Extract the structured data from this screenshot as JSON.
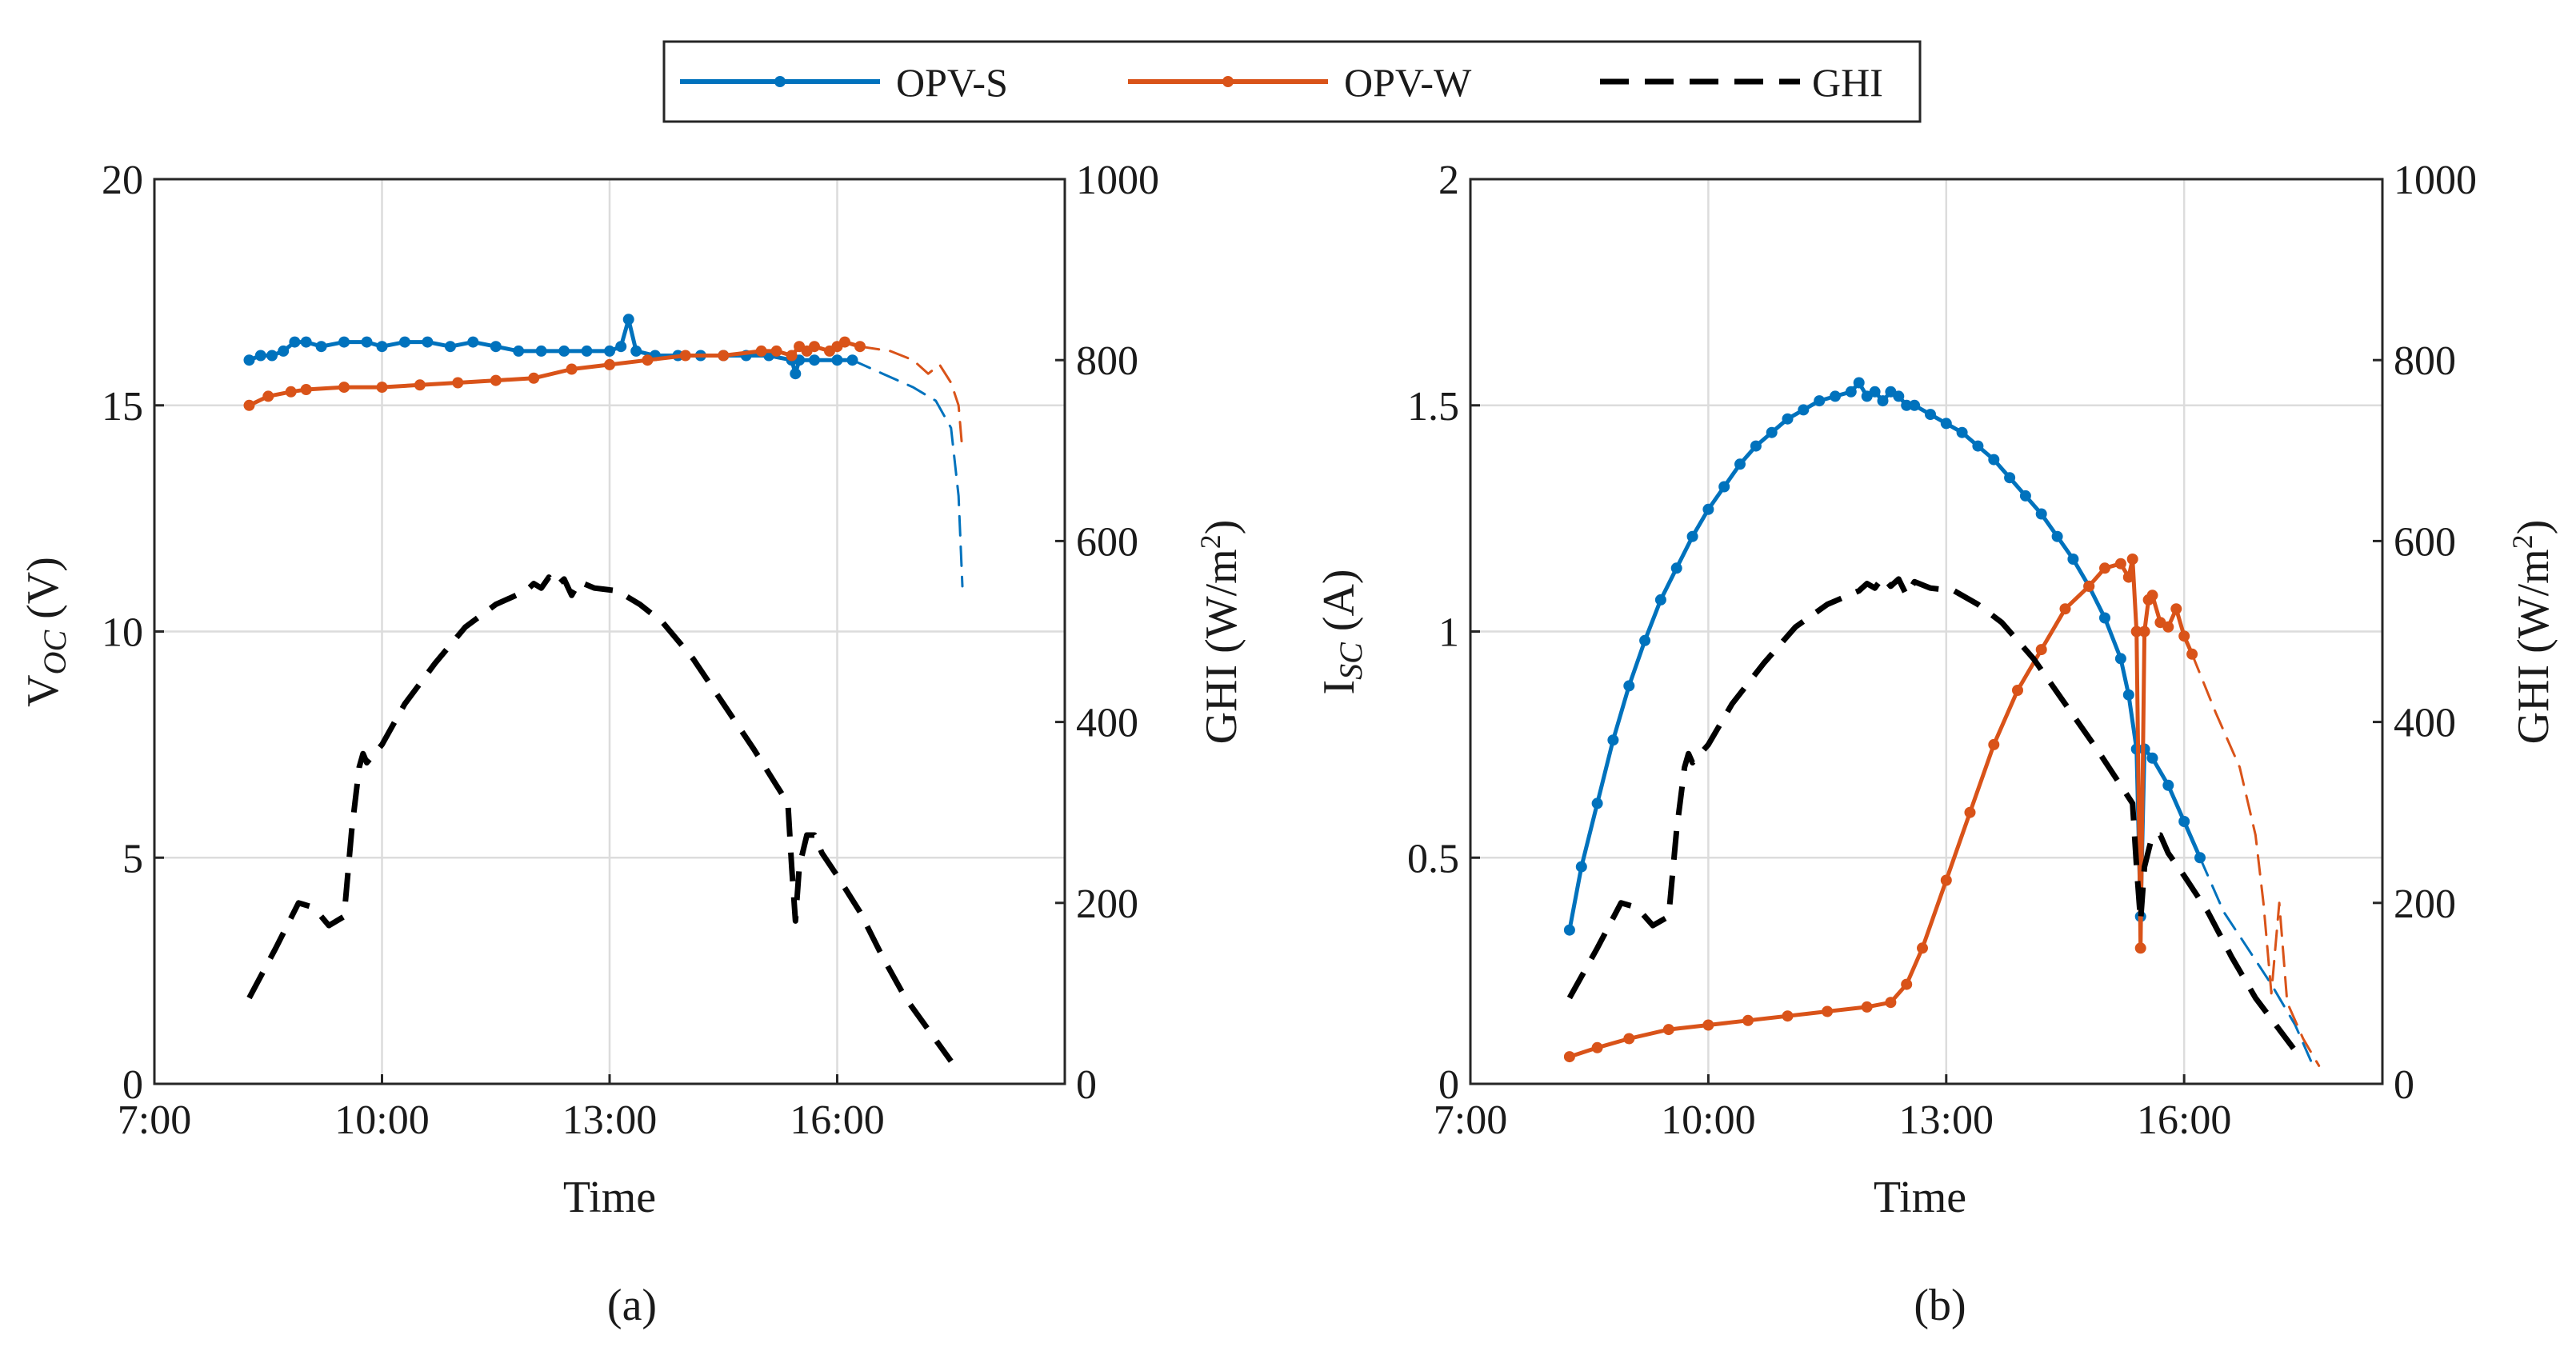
{
  "legend": {
    "items": [
      {
        "label": "OPV-S",
        "color": "#0072BD",
        "style": "solid-marker"
      },
      {
        "label": "OPV-W",
        "color": "#D95319",
        "style": "solid-marker"
      },
      {
        "label": "GHI",
        "color": "#000000",
        "style": "dashed"
      }
    ]
  },
  "chart_data": [
    {
      "type": "line",
      "panel_label": "(a)",
      "xlabel": "Time",
      "ylabel_left": {
        "main": "V",
        "sub": "OC",
        "unit": " (V)"
      },
      "ylabel_right": {
        "main": "GHI (W/m",
        "sup": "2",
        "tail": ")"
      },
      "xlim": [
        7,
        19
      ],
      "xticks": [
        7,
        10,
        13,
        16
      ],
      "xtick_labels": [
        "7:00",
        "10:00",
        "13:00",
        "16:00"
      ],
      "ylim_left": [
        0,
        20
      ],
      "yticks_left": [
        0,
        5,
        10,
        15,
        20
      ],
      "ytick_labels_left": [
        "0",
        "5",
        "10",
        "15",
        "20"
      ],
      "ylim_right": [
        0,
        1000
      ],
      "yticks_right": [
        0,
        200,
        400,
        600,
        800,
        1000
      ],
      "ytick_labels_right": [
        "0",
        "200",
        "400",
        "600",
        "800",
        "1000"
      ],
      "grid": true,
      "series": [
        {
          "name": "OPV-S",
          "axis": "left",
          "color": "#0072BD",
          "markers": true,
          "x": [
            8.25,
            8.4,
            8.55,
            8.7,
            8.85,
            9.0,
            9.2,
            9.5,
            9.8,
            10.0,
            10.3,
            10.6,
            10.9,
            11.2,
            11.5,
            11.8,
            12.1,
            12.4,
            12.7,
            13.0,
            13.15,
            13.25,
            13.35,
            13.6,
            13.9,
            14.2,
            14.5,
            14.8,
            15.1,
            15.4,
            15.45,
            15.5,
            15.7,
            16.0,
            16.2
          ],
          "y": [
            16.0,
            16.1,
            16.1,
            16.2,
            16.4,
            16.4,
            16.3,
            16.4,
            16.4,
            16.3,
            16.4,
            16.4,
            16.3,
            16.4,
            16.3,
            16.2,
            16.2,
            16.2,
            16.2,
            16.2,
            16.3,
            16.9,
            16.2,
            16.1,
            16.1,
            16.1,
            16.1,
            16.1,
            16.1,
            16.0,
            15.7,
            16.0,
            16.0,
            16.0,
            16.0
          ]
        },
        {
          "name": "OPV-S (tail)",
          "axis": "left",
          "color": "#0072BD",
          "dashed": true,
          "x": [
            16.2,
            16.6,
            17.0,
            17.3,
            17.5,
            17.6,
            17.65
          ],
          "y": [
            16.0,
            15.7,
            15.4,
            15.1,
            14.5,
            13.0,
            11.0
          ]
        },
        {
          "name": "OPV-W",
          "axis": "left",
          "color": "#D95319",
          "markers": true,
          "x": [
            8.25,
            8.5,
            8.8,
            9.0,
            9.5,
            10.0,
            10.5,
            11.0,
            11.5,
            12.0,
            12.5,
            13.0,
            13.5,
            14.0,
            14.5,
            15.0,
            15.2,
            15.4,
            15.5,
            15.6,
            15.7,
            15.9,
            16.0,
            16.1,
            16.3
          ],
          "y": [
            15.0,
            15.2,
            15.3,
            15.35,
            15.4,
            15.4,
            15.45,
            15.5,
            15.55,
            15.6,
            15.8,
            15.9,
            16.0,
            16.1,
            16.1,
            16.2,
            16.2,
            16.1,
            16.3,
            16.2,
            16.3,
            16.2,
            16.3,
            16.4,
            16.3
          ]
        },
        {
          "name": "OPV-W (tail)",
          "axis": "left",
          "color": "#D95319",
          "dashed": true,
          "x": [
            16.3,
            16.7,
            17.0,
            17.2,
            17.35,
            17.5,
            17.6,
            17.65
          ],
          "y": [
            16.3,
            16.2,
            16.0,
            15.7,
            15.9,
            15.5,
            15.0,
            14.0
          ]
        },
        {
          "name": "GHI",
          "axis": "right",
          "color": "#000000",
          "dashed": true,
          "x": [
            8.25,
            8.6,
            8.9,
            9.1,
            9.3,
            9.5,
            9.6,
            9.7,
            9.75,
            9.8,
            10.0,
            10.3,
            10.7,
            11.1,
            11.5,
            11.9,
            12.0,
            12.1,
            12.2,
            12.3,
            12.4,
            12.5,
            12.6,
            12.8,
            13.1,
            13.4,
            13.7,
            14.1,
            14.5,
            14.9,
            15.2,
            15.35,
            15.4,
            15.45,
            15.5,
            15.6,
            15.7,
            15.8,
            16.0,
            16.3,
            16.6,
            16.9,
            17.2,
            17.5
          ],
          "y": [
            95,
            150,
            200,
            195,
            175,
            185,
            280,
            350,
            365,
            355,
            375,
            420,
            465,
            505,
            530,
            545,
            553,
            548,
            560,
            550,
            558,
            540,
            555,
            548,
            545,
            530,
            510,
            470,
            420,
            370,
            330,
            310,
            240,
            180,
            240,
            275,
            275,
            255,
            230,
            190,
            140,
            95,
            60,
            25
          ]
        }
      ]
    },
    {
      "type": "line",
      "panel_label": "(b)",
      "xlabel": "Time",
      "ylabel_left": {
        "main": "I",
        "sub": "SC",
        "unit": " (A)"
      },
      "ylabel_right": {
        "main": "GHI (W/m",
        "sup": "2",
        "tail": ")"
      },
      "xlim": [
        7,
        18.5
      ],
      "xticks": [
        7,
        10,
        13,
        16
      ],
      "xtick_labels": [
        "7:00",
        "10:00",
        "13:00",
        "16:00"
      ],
      "ylim_left": [
        0,
        2
      ],
      "yticks_left": [
        0,
        0.5,
        1,
        1.5,
        2
      ],
      "ytick_labels_left": [
        "0",
        "0.5",
        "1",
        "1.5",
        "2"
      ],
      "ylim_right": [
        0,
        1000
      ],
      "yticks_right": [
        0,
        200,
        400,
        600,
        800,
        1000
      ],
      "ytick_labels_right": [
        "0",
        "200",
        "400",
        "600",
        "800",
        "1000"
      ],
      "grid": true,
      "series": [
        {
          "name": "OPV-S",
          "axis": "left",
          "color": "#0072BD",
          "markers": true,
          "x": [
            8.25,
            8.4,
            8.6,
            8.8,
            9.0,
            9.2,
            9.4,
            9.6,
            9.8,
            10.0,
            10.2,
            10.4,
            10.6,
            10.8,
            11.0,
            11.2,
            11.4,
            11.6,
            11.8,
            11.9,
            12.0,
            12.1,
            12.2,
            12.3,
            12.4,
            12.5,
            12.6,
            12.8,
            13.0,
            13.2,
            13.4,
            13.6,
            13.8,
            14.0,
            14.2,
            14.4,
            14.6,
            14.8,
            15.0,
            15.2,
            15.3,
            15.4,
            15.45,
            15.5,
            15.6,
            15.8,
            16.0,
            16.2
          ],
          "y": [
            0.34,
            0.48,
            0.62,
            0.76,
            0.88,
            0.98,
            1.07,
            1.14,
            1.21,
            1.27,
            1.32,
            1.37,
            1.41,
            1.44,
            1.47,
            1.49,
            1.51,
            1.52,
            1.53,
            1.55,
            1.52,
            1.53,
            1.51,
            1.53,
            1.52,
            1.5,
            1.5,
            1.48,
            1.46,
            1.44,
            1.41,
            1.38,
            1.34,
            1.3,
            1.26,
            1.21,
            1.16,
            1.1,
            1.03,
            0.94,
            0.86,
            0.74,
            0.37,
            0.74,
            0.72,
            0.66,
            0.58,
            0.5
          ]
        },
        {
          "name": "OPV-S (tail)",
          "axis": "left",
          "color": "#0072BD",
          "dashed": true,
          "x": [
            16.2,
            16.5,
            16.8,
            17.1,
            17.4,
            17.6
          ],
          "y": [
            0.5,
            0.38,
            0.3,
            0.22,
            0.13,
            0.05
          ]
        },
        {
          "name": "OPV-W",
          "axis": "left",
          "color": "#D95319",
          "markers": true,
          "x": [
            8.25,
            8.6,
            9.0,
            9.5,
            10.0,
            10.5,
            11.0,
            11.5,
            12.0,
            12.3,
            12.5,
            12.7,
            13.0,
            13.3,
            13.6,
            13.9,
            14.2,
            14.5,
            14.8,
            15.0,
            15.2,
            15.3,
            15.35,
            15.4,
            15.45,
            15.5,
            15.55,
            15.6,
            15.7,
            15.8,
            15.9,
            16.0,
            16.1
          ],
          "y": [
            0.06,
            0.08,
            0.1,
            0.12,
            0.13,
            0.14,
            0.15,
            0.16,
            0.17,
            0.18,
            0.22,
            0.3,
            0.45,
            0.6,
            0.75,
            0.87,
            0.96,
            1.05,
            1.1,
            1.14,
            1.15,
            1.12,
            1.16,
            1.0,
            0.3,
            1.0,
            1.07,
            1.08,
            1.02,
            1.01,
            1.05,
            0.99,
            0.95
          ]
        },
        {
          "name": "OPV-W (tail)",
          "axis": "left",
          "color": "#D95319",
          "dashed": true,
          "x": [
            16.1,
            16.4,
            16.7,
            16.9,
            17.0,
            17.1,
            17.2,
            17.3,
            17.5,
            17.7
          ],
          "y": [
            0.95,
            0.82,
            0.7,
            0.55,
            0.4,
            0.2,
            0.4,
            0.18,
            0.1,
            0.04
          ]
        },
        {
          "name": "GHI",
          "axis": "right",
          "color": "#000000",
          "dashed": true,
          "x": [
            8.25,
            8.6,
            8.9,
            9.1,
            9.3,
            9.5,
            9.6,
            9.7,
            9.75,
            9.8,
            10.0,
            10.3,
            10.7,
            11.1,
            11.5,
            11.9,
            12.0,
            12.1,
            12.2,
            12.3,
            12.4,
            12.5,
            12.6,
            12.8,
            13.1,
            13.4,
            13.7,
            14.1,
            14.5,
            14.9,
            15.2,
            15.35,
            15.4,
            15.45,
            15.5,
            15.6,
            15.7,
            15.8,
            16.0,
            16.3,
            16.6,
            16.9,
            17.2,
            17.5
          ],
          "y": [
            95,
            150,
            200,
            195,
            175,
            185,
            280,
            350,
            365,
            355,
            375,
            420,
            465,
            505,
            530,
            545,
            553,
            548,
            560,
            550,
            558,
            540,
            555,
            548,
            545,
            530,
            510,
            470,
            420,
            370,
            330,
            310,
            240,
            180,
            240,
            275,
            275,
            255,
            230,
            190,
            140,
            95,
            60,
            25
          ]
        }
      ]
    }
  ]
}
